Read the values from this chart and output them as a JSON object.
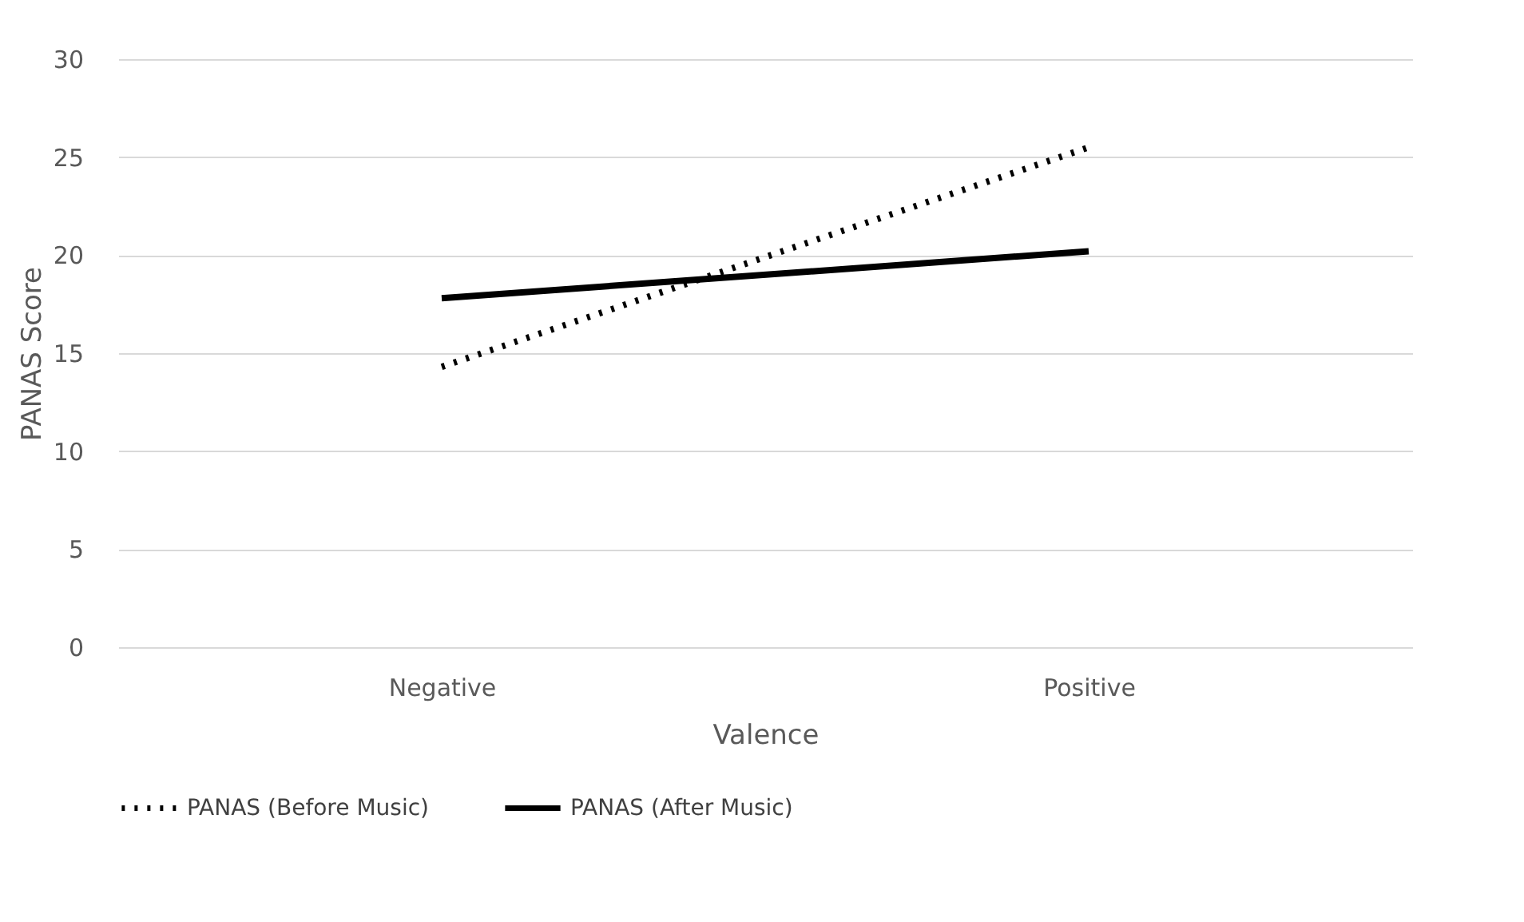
{
  "chart_data": {
    "type": "line",
    "xlabel": "Valence",
    "ylabel": "PANAS Score",
    "categories": [
      "Negative",
      "Positive"
    ],
    "series": [
      {
        "name": "PANAS (Before Music)",
        "color": "#000000",
        "values": [
          14.3,
          25.5
        ],
        "line_style": "dotted"
      },
      {
        "name": "PANAS (After Music)",
        "color": "#000000",
        "values": [
          17.8,
          20.2
        ],
        "line_style": "solid"
      }
    ],
    "ylim": [
      0,
      30
    ],
    "yticks": [
      0,
      5,
      10,
      15,
      20,
      25,
      30
    ],
    "grid": "y",
    "legend": "bottom"
  }
}
